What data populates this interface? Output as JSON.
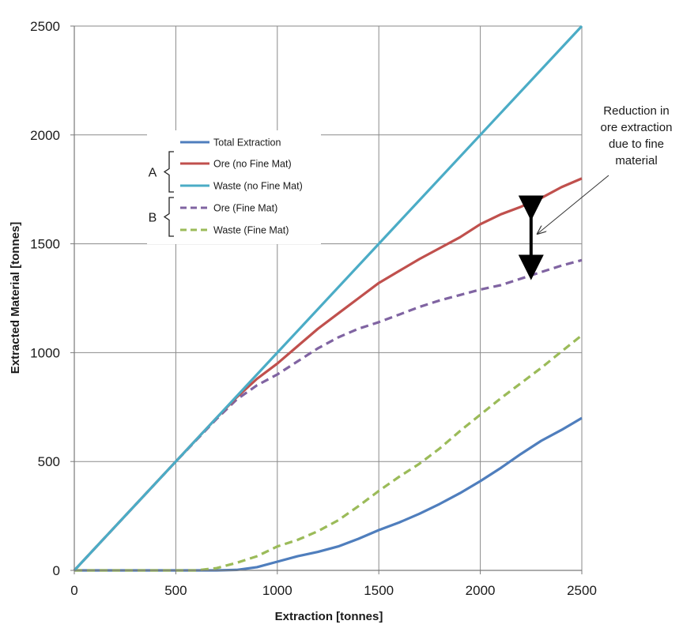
{
  "chart_data": {
    "type": "line",
    "xlabel": "Extraction [tonnes]",
    "ylabel": "Extracted Material [tonnes]",
    "xlim": [
      0,
      2500
    ],
    "ylim": [
      0,
      2500
    ],
    "xticks": [
      0,
      500,
      1000,
      1500,
      2000,
      2500
    ],
    "yticks": [
      0,
      500,
      1000,
      1500,
      2000,
      2500
    ],
    "grid": true,
    "legend_position": "upper-left",
    "series": [
      {
        "name": "Total Extraction",
        "color": "#4f7ebd",
        "dash": "solid",
        "group": "",
        "x": [
          0,
          500,
          700,
          800,
          900,
          1000,
          1100,
          1200,
          1300,
          1400,
          1500,
          1600,
          1700,
          1800,
          1900,
          2000,
          2100,
          2200,
          2300,
          2400,
          2500
        ],
        "y": [
          0,
          0,
          0,
          2,
          15,
          40,
          65,
          85,
          110,
          145,
          185,
          220,
          260,
          305,
          355,
          410,
          470,
          535,
          595,
          645,
          700
        ]
      },
      {
        "name": "Ore (no Fine Mat)",
        "color": "#c0504d",
        "dash": "solid",
        "group": "A",
        "x": [
          0,
          500,
          700,
          800,
          900,
          1000,
          1100,
          1200,
          1300,
          1400,
          1500,
          1600,
          1700,
          1800,
          1900,
          2000,
          2100,
          2200,
          2300,
          2400,
          2500
        ],
        "y": [
          0,
          500,
          700,
          795,
          880,
          950,
          1030,
          1110,
          1180,
          1250,
          1320,
          1375,
          1430,
          1480,
          1530,
          1590,
          1635,
          1670,
          1710,
          1760,
          1800
        ]
      },
      {
        "name": "Waste (no Fine Mat)",
        "color": "#4bacc6",
        "dash": "solid",
        "group": "A",
        "x": [
          0,
          500,
          1000,
          1500,
          2000,
          2500
        ],
        "y": [
          0,
          500,
          1000,
          1500,
          2000,
          2500
        ]
      },
      {
        "name": "Ore (Fine Mat)",
        "color": "#8064a2",
        "dash": "dashed",
        "group": "B",
        "x": [
          0,
          500,
          700,
          800,
          900,
          1000,
          1100,
          1200,
          1300,
          1400,
          1500,
          1600,
          1700,
          1800,
          1900,
          2000,
          2100,
          2200,
          2300,
          2400,
          2500
        ],
        "y": [
          0,
          500,
          695,
          785,
          850,
          900,
          960,
          1020,
          1070,
          1110,
          1140,
          1175,
          1210,
          1240,
          1265,
          1290,
          1310,
          1340,
          1370,
          1400,
          1425
        ]
      },
      {
        "name": "Waste (Fine Mat)",
        "color": "#9bbb59",
        "dash": "dashed",
        "group": "B",
        "x": [
          0,
          600,
          700,
          800,
          900,
          1000,
          1100,
          1200,
          1300,
          1400,
          1500,
          1600,
          1700,
          1800,
          1900,
          2000,
          2100,
          2200,
          2300,
          2400,
          2500
        ],
        "y": [
          0,
          0,
          10,
          35,
          65,
          110,
          140,
          180,
          230,
          295,
          365,
          430,
          490,
          560,
          640,
          715,
          790,
          860,
          930,
          1005,
          1080
        ]
      }
    ],
    "group_labels": [
      "A",
      "B"
    ],
    "annotation": {
      "lines": [
        "Reduction in",
        "ore extraction",
        "due to fine",
        "material"
      ],
      "arrow_x": 2250,
      "arrow_y_top": 1700,
      "arrow_y_bottom": 1355
    }
  }
}
